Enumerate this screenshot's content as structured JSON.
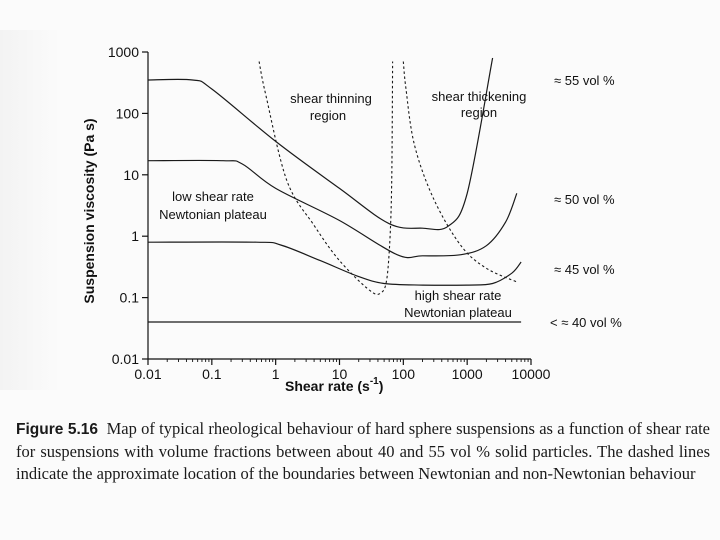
{
  "chart_data": {
    "type": "line",
    "x_scale": "log",
    "y_scale": "log",
    "xlabel_main": "Shear rate (s",
    "xlabel_exp": "-1",
    "xlabel_close": ")",
    "ylabel": "Suspension viscosity (Pa s)",
    "xlim": [
      0.01,
      10000
    ],
    "ylim": [
      0.01,
      1000
    ],
    "x_ticks": [
      0.01,
      0.1,
      1,
      10,
      100,
      1000,
      10000
    ],
    "x_tick_labels": [
      "0.01",
      "0.1",
      "1",
      "10",
      "100",
      "1000",
      "10000"
    ],
    "y_ticks": [
      0.01,
      0.1,
      1,
      10,
      100,
      1000
    ],
    "y_tick_labels": [
      "0.01",
      "0.1",
      "1",
      "10",
      "100",
      "1000"
    ],
    "series": [
      {
        "name": "≈ 55 vol %",
        "style": "solid",
        "x": [
          0.01,
          0.05,
          0.1,
          1,
          10,
          60,
          200,
          500,
          1000,
          2500
        ],
        "y": [
          350,
          350,
          250,
          35,
          6,
          1.6,
          1.35,
          1.45,
          5,
          800
        ]
      },
      {
        "name": "≈ 50 vol %",
        "style": "solid",
        "x": [
          0.01,
          0.15,
          0.3,
          1,
          10,
          80,
          200,
          800,
          2000,
          4000,
          6000
        ],
        "y": [
          17,
          17,
          15,
          6,
          1.8,
          0.5,
          0.48,
          0.5,
          0.7,
          1.7,
          5
        ]
      },
      {
        "name": "≈ 45 vol %",
        "style": "solid",
        "x": [
          0.01,
          0.5,
          1.2,
          5,
          20,
          50,
          200,
          1000,
          2500,
          5000,
          7000
        ],
        "y": [
          0.8,
          0.8,
          0.72,
          0.4,
          0.22,
          0.17,
          0.16,
          0.16,
          0.17,
          0.25,
          0.38
        ]
      },
      {
        "name": "< ≈ 40 vol %",
        "style": "solid",
        "x": [
          0.01,
          7000
        ],
        "y": [
          0.04,
          0.04
        ]
      },
      {
        "name": "boundary (Newtonian plateau / shear thinning)",
        "style": "dashed",
        "x": [
          0.55,
          0.7,
          1.5,
          4,
          10,
          30,
          45,
          55,
          62,
          66,
          68
        ],
        "y": [
          700,
          200,
          8,
          1.5,
          0.4,
          0.13,
          0.12,
          0.2,
          1,
          10,
          700
        ]
      },
      {
        "name": "boundary (shear thickening / high shear plateau)",
        "style": "dashed",
        "x": [
          100,
          110,
          150,
          300,
          800,
          2000,
          6000
        ],
        "y": [
          700,
          250,
          30,
          4,
          0.7,
          0.3,
          0.18
        ]
      }
    ],
    "annotations": [
      "shear thinning",
      "region",
      "shear thickening",
      "region",
      "low shear rate",
      "Newtonian plateau",
      "high shear rate",
      "Newtonian plateau"
    ],
    "series_labels": [
      "≈ 55 vol %",
      "≈ 50 vol %",
      "≈ 45 vol %",
      "< ≈ 40 vol %"
    ]
  },
  "caption": {
    "figure_number": "Figure 5.16",
    "text": "Map of typical rheological behaviour of hard sphere suspensions as a function of shear rate for suspensions with volume fractions between about 40 and 55 vol % solid particles. The dashed lines indicate the approximate location of the boundaries between Newtonian and non-Newtonian behaviour"
  }
}
